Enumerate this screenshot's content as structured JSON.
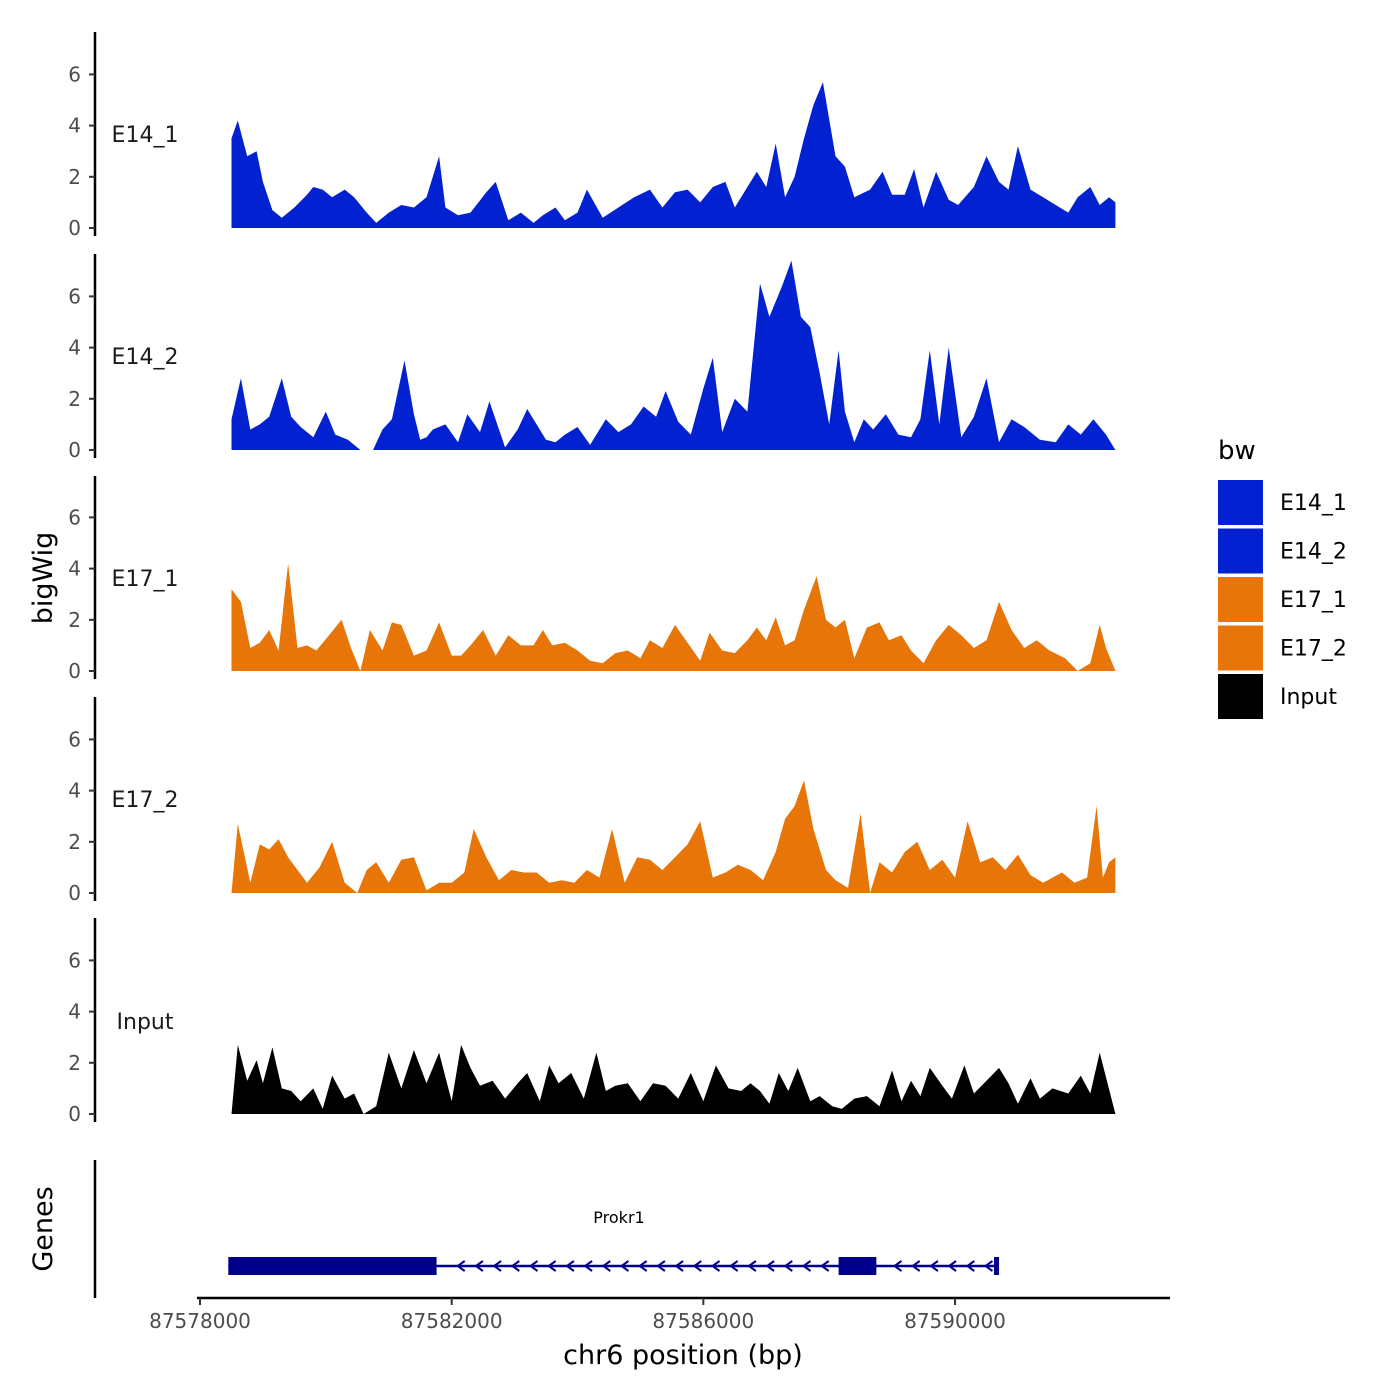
{
  "chart_data": {
    "type": "area",
    "y_axis_title": "bigWig",
    "x_axis_title": "chr6 position (bp)",
    "x_range": [
      87578500,
      87592550
    ],
    "x_ticks": [
      87578000,
      87582000,
      87586000,
      87590000
    ],
    "x_tick_labels": [
      "87578000",
      "87582000",
      "87586000",
      "87590000"
    ],
    "y_range": [
      0,
      7.8
    ],
    "y_ticks": [
      0,
      2,
      4,
      6
    ],
    "y_tick_labels": [
      "0",
      "2",
      "4",
      "6"
    ],
    "legend": {
      "title": "bw",
      "position": "right",
      "entries": [
        {
          "label": "E14_1",
          "color": "#0221D1"
        },
        {
          "label": "E14_2",
          "color": "#0221D1"
        },
        {
          "label": "E17_1",
          "color": "#E87508"
        },
        {
          "label": "E17_2",
          "color": "#E87508"
        },
        {
          "label": "Input",
          "color": "#000000"
        }
      ]
    },
    "series": [
      {
        "name": "E14_1",
        "color": "#0221D1",
        "x": [
          87578500,
          87578600,
          87578750,
          87578900,
          87579000,
          87579150,
          87579300,
          87579500,
          87579700,
          87579800,
          87579950,
          87580100,
          87580300,
          87580450,
          87580650,
          87580800,
          87581000,
          87581200,
          87581400,
          87581600,
          87581800,
          87581900,
          87582100,
          87582300,
          87582550,
          87582700,
          87582900,
          87583100,
          87583300,
          87583450,
          87583650,
          87583800,
          87584000,
          87584150,
          87584400,
          87584650,
          87584900,
          87585150,
          87585350,
          87585550,
          87585750,
          87585950,
          87586150,
          87586350,
          87586500,
          87586700,
          87586850,
          87587000,
          87587150,
          87587300,
          87587450,
          87587600,
          87587750,
          87587900,
          87588100,
          87588250,
          87588400,
          87588650,
          87588850,
          87589000,
          87589200,
          87589350,
          87589500,
          87589700,
          87589900,
          87590050,
          87590300,
          87590500,
          87590700,
          87590850,
          87591000,
          87591200,
          87591400,
          87591600,
          87591800,
          87591950,
          87592150,
          87592300,
          87592450,
          87592550
        ],
        "values": [
          3.5,
          4.2,
          2.8,
          3.0,
          1.8,
          0.7,
          0.4,
          0.8,
          1.3,
          1.6,
          1.5,
          1.2,
          1.5,
          1.2,
          0.6,
          0.2,
          0.6,
          0.9,
          0.8,
          1.2,
          2.8,
          0.8,
          0.5,
          0.6,
          1.4,
          1.8,
          0.3,
          0.6,
          0.2,
          0.5,
          0.8,
          0.3,
          0.6,
          1.5,
          0.4,
          0.8,
          1.2,
          1.5,
          0.8,
          1.4,
          1.5,
          1.0,
          1.6,
          1.8,
          0.8,
          1.6,
          2.2,
          1.6,
          3.3,
          1.2,
          2.0,
          3.5,
          4.8,
          5.7,
          2.8,
          2.4,
          1.2,
          1.5,
          2.2,
          1.3,
          1.3,
          2.3,
          0.8,
          2.2,
          1.1,
          0.9,
          1.6,
          2.8,
          1.8,
          1.5,
          3.2,
          1.5,
          1.2,
          0.9,
          0.6,
          1.2,
          1.6,
          0.9,
          1.2,
          1.0
        ]
      },
      {
        "name": "E14_2",
        "color": "#0221D1",
        "x": [
          87578500,
          87578650,
          87578800,
          87578950,
          87579100,
          87579300,
          87579450,
          87579600,
          87579800,
          87580000,
          87580150,
          87580350,
          87580550,
          87580750,
          87580900,
          87581050,
          87581250,
          87581400,
          87581500,
          87581600,
          87581700,
          87581900,
          87582100,
          87582250,
          87582450,
          87582600,
          87582850,
          87583050,
          87583200,
          87583500,
          87583650,
          87583800,
          87584000,
          87584200,
          87584450,
          87584650,
          87584850,
          87585050,
          87585250,
          87585400,
          87585600,
          87585800,
          87586000,
          87586150,
          87586300,
          87586500,
          87586700,
          87586900,
          87587050,
          87587250,
          87587400,
          87587550,
          87587700,
          87587850,
          87588000,
          87588150,
          87588250,
          87588400,
          87588550,
          87588700,
          87588900,
          87589100,
          87589300,
          87589450,
          87589600,
          87589750,
          87589900,
          87590100,
          87590300,
          87590500,
          87590700,
          87590900,
          87591100,
          87591350,
          87591600,
          87591800,
          87592000,
          87592200,
          87592400,
          87592550
        ],
        "values": [
          1.2,
          2.8,
          0.8,
          1.0,
          1.3,
          2.8,
          1.3,
          0.9,
          0.5,
          1.5,
          0.6,
          0.4,
          0.0,
          0.0,
          0.8,
          1.2,
          3.5,
          1.4,
          0.4,
          0.5,
          0.8,
          1.0,
          0.3,
          1.4,
          0.7,
          1.9,
          0.1,
          0.8,
          1.6,
          0.4,
          0.3,
          0.6,
          0.9,
          0.2,
          1.2,
          0.7,
          1.0,
          1.7,
          1.3,
          2.3,
          1.1,
          0.6,
          2.4,
          3.6,
          0.7,
          2.0,
          1.5,
          6.5,
          5.2,
          6.4,
          7.4,
          5.2,
          4.8,
          3.0,
          1.0,
          3.9,
          1.5,
          0.3,
          1.2,
          0.8,
          1.4,
          0.6,
          0.5,
          1.2,
          3.9,
          1.0,
          4.0,
          0.5,
          1.3,
          2.8,
          0.3,
          1.2,
          0.9,
          0.4,
          0.3,
          1.0,
          0.6,
          1.2,
          0.6,
          0.0
        ]
      },
      {
        "name": "E17_1",
        "color": "#E87508",
        "x": [
          87578500,
          87578650,
          87578800,
          87578950,
          87579100,
          87579250,
          87579400,
          87579550,
          87579700,
          87579850,
          87580050,
          87580250,
          87580400,
          87580550,
          87580700,
          87580900,
          87581050,
          87581200,
          87581400,
          87581600,
          87581800,
          87582000,
          87582150,
          87582300,
          87582500,
          87582700,
          87582900,
          87583100,
          87583300,
          87583450,
          87583600,
          87583800,
          87584000,
          87584200,
          87584400,
          87584600,
          87584800,
          87585000,
          87585150,
          87585350,
          87585550,
          87585750,
          87585950,
          87586100,
          87586300,
          87586500,
          87586700,
          87586850,
          87587000,
          87587150,
          87587300,
          87587450,
          87587600,
          87587800,
          87587950,
          87588100,
          87588250,
          87588400,
          87588600,
          87588800,
          87588950,
          87589150,
          87589300,
          87589500,
          87589700,
          87589900,
          87590100,
          87590300,
          87590500,
          87590700,
          87590900,
          87591100,
          87591300,
          87591500,
          87591750,
          87591950,
          87592150,
          87592300,
          87592400,
          87592550
        ],
        "values": [
          3.2,
          2.7,
          0.9,
          1.1,
          1.6,
          0.8,
          4.2,
          0.9,
          1.0,
          0.8,
          1.4,
          2.0,
          0.9,
          0.0,
          1.6,
          0.8,
          1.9,
          1.8,
          0.6,
          0.8,
          1.9,
          0.6,
          0.6,
          1.0,
          1.6,
          0.6,
          1.4,
          1.0,
          1.0,
          1.6,
          1.0,
          1.1,
          0.8,
          0.4,
          0.3,
          0.7,
          0.8,
          0.5,
          1.2,
          0.9,
          1.8,
          1.1,
          0.4,
          1.5,
          0.8,
          0.7,
          1.2,
          1.7,
          1.2,
          2.1,
          1.0,
          1.2,
          2.4,
          3.7,
          2.0,
          1.7,
          2.0,
          0.5,
          1.7,
          1.9,
          1.2,
          1.4,
          0.8,
          0.3,
          1.2,
          1.8,
          1.4,
          0.9,
          1.2,
          2.7,
          1.6,
          0.9,
          1.2,
          0.8,
          0.5,
          0.0,
          0.3,
          1.8,
          0.9,
          0.0
        ]
      },
      {
        "name": "E17_2",
        "color": "#E87508",
        "x": [
          87578500,
          87578600,
          87578800,
          87578950,
          87579100,
          87579250,
          87579400,
          87579550,
          87579700,
          87579900,
          87580100,
          87580300,
          87580500,
          87580650,
          87580800,
          87581000,
          87581200,
          87581400,
          87581600,
          87581800,
          87582000,
          87582200,
          87582350,
          87582550,
          87582750,
          87582950,
          87583150,
          87583350,
          87583550,
          87583750,
          87583950,
          87584150,
          87584350,
          87584550,
          87584750,
          87584950,
          87585150,
          87585350,
          87585550,
          87585750,
          87585950,
          87586150,
          87586350,
          87586550,
          87586750,
          87586950,
          87587150,
          87587300,
          87587450,
          87587600,
          87587750,
          87587950,
          87588100,
          87588300,
          87588500,
          87588650,
          87588800,
          87589000,
          87589200,
          87589400,
          87589600,
          87589800,
          87590000,
          87590200,
          87590400,
          87590600,
          87590800,
          87591000,
          87591200,
          87591400,
          87591550,
          87591700,
          87591900,
          87592100,
          87592250,
          87592350,
          87592450,
          87592550
        ],
        "values": [
          0.0,
          2.7,
          0.4,
          1.9,
          1.7,
          2.1,
          1.4,
          0.9,
          0.4,
          1.0,
          2.0,
          0.4,
          0.0,
          0.9,
          1.2,
          0.4,
          1.3,
          1.4,
          0.1,
          0.4,
          0.4,
          0.8,
          2.5,
          1.4,
          0.5,
          0.9,
          0.8,
          0.8,
          0.4,
          0.5,
          0.4,
          0.9,
          0.6,
          2.5,
          0.4,
          1.4,
          1.3,
          0.9,
          1.4,
          1.9,
          2.8,
          0.6,
          0.8,
          1.1,
          0.9,
          0.5,
          1.6,
          2.9,
          3.4,
          4.4,
          2.5,
          0.9,
          0.5,
          0.2,
          3.1,
          0.0,
          1.2,
          0.8,
          1.6,
          2.0,
          0.9,
          1.3,
          0.6,
          2.8,
          1.2,
          1.4,
          0.9,
          1.5,
          0.7,
          0.4,
          0.6,
          0.8,
          0.4,
          0.6,
          3.4,
          0.6,
          1.2,
          1.4
        ]
      },
      {
        "name": "Input",
        "color": "#000000",
        "x": [
          87578500,
          87578600,
          87578750,
          87578900,
          87579000,
          87579150,
          87579300,
          87579450,
          87579600,
          87579800,
          87579950,
          87580100,
          87580300,
          87580450,
          87580600,
          87580800,
          87581000,
          87581200,
          87581400,
          87581600,
          87581800,
          87582000,
          87582150,
          87582300,
          87582450,
          87582650,
          87582850,
          87583050,
          87583200,
          87583400,
          87583550,
          87583700,
          87583900,
          87584100,
          87584300,
          87584450,
          87584600,
          87584800,
          87585000,
          87585200,
          87585400,
          87585600,
          87585800,
          87586000,
          87586200,
          87586400,
          87586600,
          87586750,
          87586900,
          87587050,
          87587200,
          87587350,
          87587500,
          87587700,
          87587850,
          87588050,
          87588200,
          87588400,
          87588600,
          87588800,
          87589000,
          87589150,
          87589300,
          87589450,
          87589600,
          87589800,
          87589950,
          87590150,
          87590300,
          87590500,
          87590700,
          87590850,
          87591000,
          87591200,
          87591350,
          87591550,
          87591800,
          87592000,
          87592150,
          87592300,
          87592550
        ],
        "values": [
          0.0,
          2.7,
          1.3,
          2.1,
          1.2,
          2.6,
          1.0,
          0.9,
          0.5,
          1.0,
          0.2,
          1.5,
          0.6,
          0.8,
          0.0,
          0.3,
          2.4,
          1.0,
          2.5,
          1.2,
          2.4,
          0.5,
          2.7,
          1.8,
          1.1,
          1.3,
          0.6,
          1.2,
          1.6,
          0.5,
          1.9,
          1.2,
          1.6,
          0.6,
          2.4,
          0.9,
          1.1,
          1.2,
          0.5,
          1.2,
          1.1,
          0.6,
          1.6,
          0.5,
          1.9,
          1.0,
          0.9,
          1.2,
          0.9,
          0.4,
          1.6,
          0.9,
          1.8,
          0.5,
          0.7,
          0.3,
          0.2,
          0.6,
          0.7,
          0.3,
          1.7,
          0.5,
          1.3,
          0.7,
          1.8,
          1.1,
          0.6,
          1.9,
          0.8,
          1.3,
          1.8,
          1.2,
          0.4,
          1.4,
          0.6,
          1.0,
          0.8,
          1.5,
          0.8,
          2.4,
          0.0
        ]
      }
    ],
    "genes_track": {
      "label": "Genes",
      "gene": {
        "name": "Prokr1",
        "strand": "-",
        "start": 87578450,
        "end": 87590700,
        "color": "#00008B",
        "exons": [
          {
            "start": 87578450,
            "end": 87581760
          },
          {
            "start": 87588150,
            "end": 87588750
          },
          {
            "start": 87590620,
            "end": 87590700
          }
        ]
      }
    }
  }
}
